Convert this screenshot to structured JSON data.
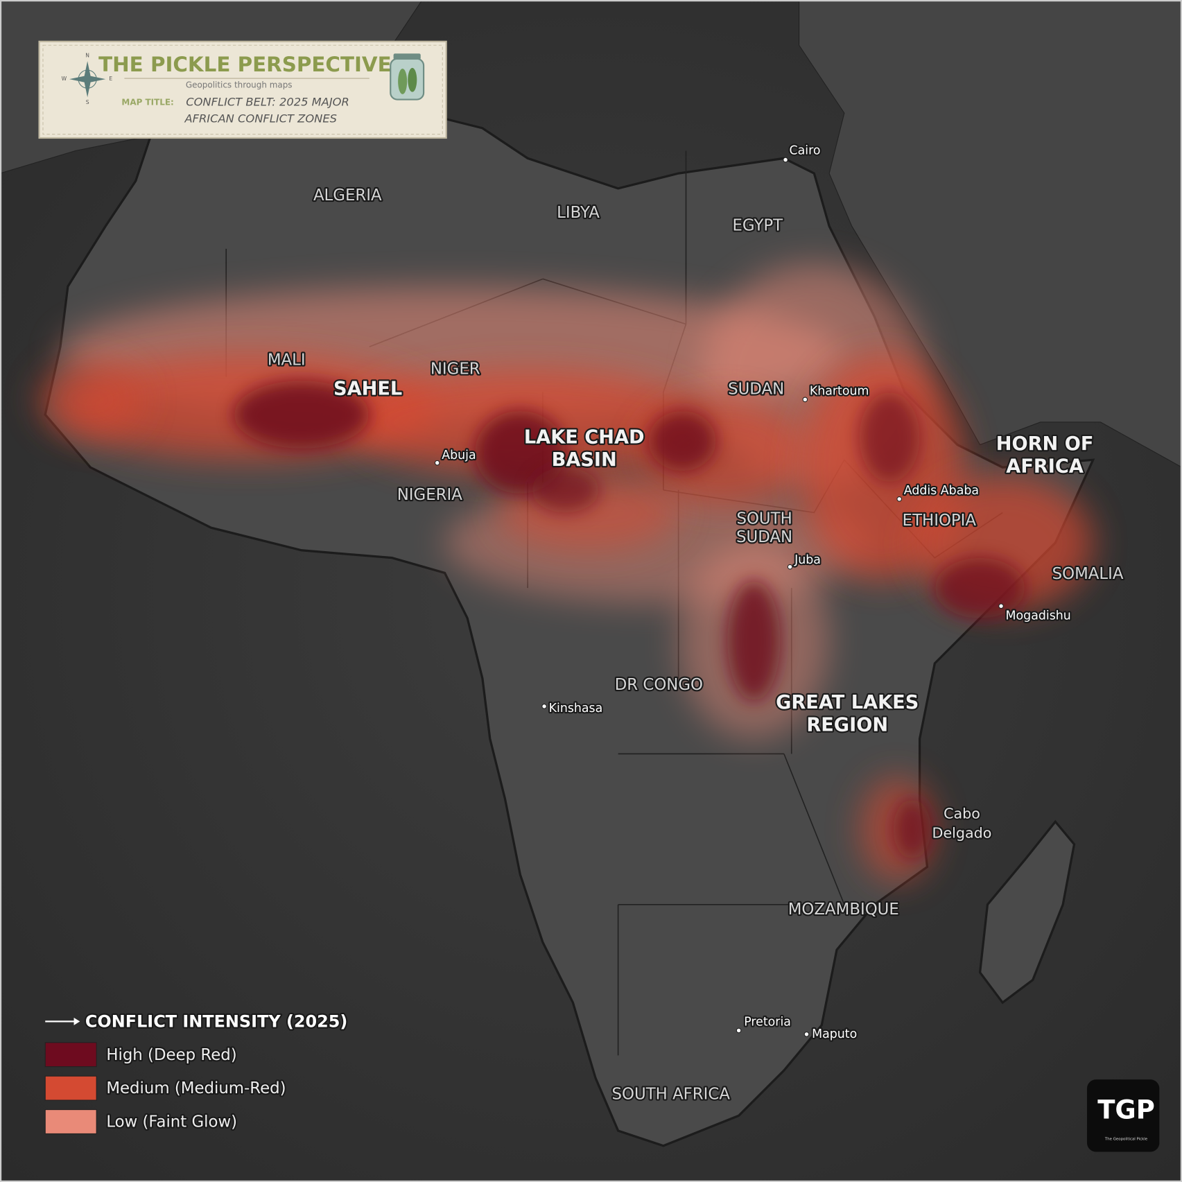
{
  "header": {
    "title": "THE PICKLE PERSPECTIVE",
    "subtitle": "Geopolitics through maps",
    "compass": [
      "N",
      "E",
      "S",
      "W"
    ],
    "map_title_label": "MAP TITLE:",
    "map_title_lines": [
      "CONFLICT BELT: 2025 MAJOR",
      "AFRICAN CONFLICT ZONES"
    ]
  },
  "countries": [
    {
      "lines": [
        "ALGERIA"
      ]
    },
    {
      "lines": [
        "LIBYA"
      ]
    },
    {
      "lines": [
        "EGYPT"
      ]
    },
    {
      "lines": [
        "MALI"
      ]
    },
    {
      "lines": [
        "NIGER"
      ]
    },
    {
      "lines": [
        "SUDAN"
      ]
    },
    {
      "lines": [
        "NIGERIA"
      ]
    },
    {
      "lines": [
        "SOUTH",
        "SUDAN"
      ]
    },
    {
      "lines": [
        "ETHIOPIA"
      ]
    },
    {
      "lines": [
        "SOMALIA"
      ]
    },
    {
      "lines": [
        "DR CONGO"
      ]
    },
    {
      "lines": [
        "MOZAMBIQUE"
      ]
    },
    {
      "lines": [
        "SOUTH AFRICA"
      ]
    }
  ],
  "regions": [
    {
      "lines": [
        "SAHEL"
      ]
    },
    {
      "lines": [
        "LAKE CHAD",
        "BASIN"
      ]
    },
    {
      "lines": [
        "HORN OF",
        "AFRICA"
      ]
    },
    {
      "lines": [
        "GREAT LAKES",
        "REGION"
      ]
    },
    {
      "lines": [
        "Cabo",
        "Delgado"
      ]
    }
  ],
  "cities": [
    "Cairo",
    "Khartoum",
    "Abuja",
    "Addis Ababa",
    "Juba",
    "Mogadishu",
    "Kinshasa",
    "Pretoria",
    "Maputo"
  ],
  "legend": {
    "title": "CONFLICT INTENSITY (2025)",
    "items": [
      {
        "label": "High (Deep Red)",
        "color": "#6e0b1f"
      },
      {
        "label": "Medium (Medium-Red)",
        "color": "#d44a32"
      },
      {
        "label": "Low (Faint Glow)",
        "color": "#e98a78"
      }
    ]
  },
  "logo": {
    "text": "TGP",
    "caption": "The Geopolitical Pickle"
  }
}
